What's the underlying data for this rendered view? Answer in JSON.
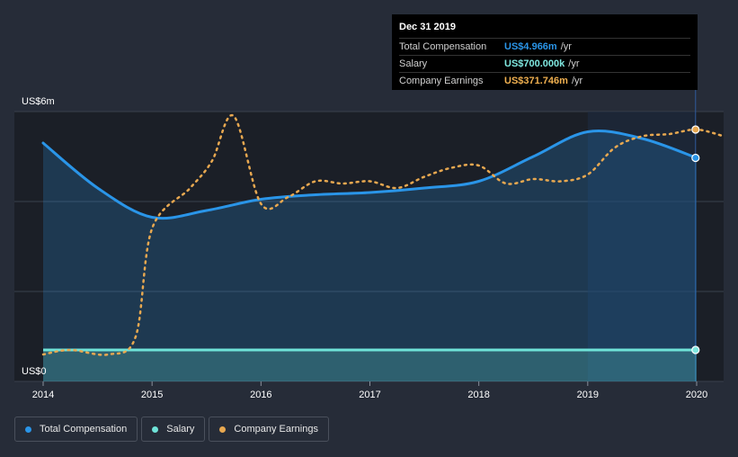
{
  "tooltip": {
    "date": "Dec 31 2019",
    "rows": [
      {
        "label": "Total Compensation",
        "value": "US$4.966m",
        "unit": "/yr",
        "color": "#2a95e8"
      },
      {
        "label": "Salary",
        "value": "US$700.000k",
        "unit": "/yr",
        "color": "#7fe8e0"
      },
      {
        "label": "Company Earnings",
        "value": "US$371.746m",
        "unit": "/yr",
        "color": "#f0b050"
      }
    ]
  },
  "legend": [
    {
      "label": "Total Compensation",
      "color": "#2a95e8"
    },
    {
      "label": "Salary",
      "color": "#6fe3d8"
    },
    {
      "label": "Company Earnings",
      "color": "#e8a850"
    }
  ],
  "chart_data": {
    "type": "line",
    "y_labels": {
      "top": "US$6m",
      "bottom": "US$0"
    },
    "ylim": [
      0,
      6
    ],
    "xlim": [
      2014,
      2020.25
    ],
    "x_ticks": [
      "2014",
      "2015",
      "2016",
      "2017",
      "2018",
      "2019",
      "2020"
    ],
    "grid": true,
    "series": [
      {
        "name": "Total Compensation",
        "color": "#2a95e8",
        "x": [
          2014,
          2014.5,
          2015,
          2015.5,
          2016,
          2016.5,
          2017,
          2017.5,
          2018,
          2018.5,
          2019,
          2019.5,
          2020
        ],
        "values": [
          5.3,
          4.3,
          3.65,
          3.8,
          4.05,
          4.15,
          4.2,
          4.3,
          4.45,
          5.0,
          5.55,
          5.4,
          4.97
        ]
      },
      {
        "name": "Salary",
        "color": "#6fe3d8",
        "x": [
          2014,
          2015,
          2016,
          2017,
          2018,
          2019,
          2020
        ],
        "values": [
          0.7,
          0.7,
          0.7,
          0.7,
          0.7,
          0.7,
          0.7
        ]
      },
      {
        "name": "Company Earnings",
        "color": "#e8a850",
        "x": [
          2014,
          2014.25,
          2014.6,
          2014.85,
          2015,
          2015.35,
          2015.55,
          2015.75,
          2016,
          2016.25,
          2016.5,
          2016.75,
          2017,
          2017.25,
          2017.5,
          2017.75,
          2018,
          2018.25,
          2018.5,
          2018.75,
          2019,
          2019.25,
          2019.5,
          2019.75,
          2020,
          2020.25
        ],
        "values": [
          0.6,
          0.7,
          0.6,
          1.0,
          3.4,
          4.3,
          4.9,
          5.9,
          3.95,
          4.1,
          4.45,
          4.4,
          4.45,
          4.3,
          4.55,
          4.75,
          4.8,
          4.4,
          4.5,
          4.45,
          4.6,
          5.2,
          5.45,
          5.5,
          5.6,
          5.45
        ]
      }
    ],
    "highlight": {
      "x": 2019.99,
      "from_x": 2019.0
    }
  }
}
